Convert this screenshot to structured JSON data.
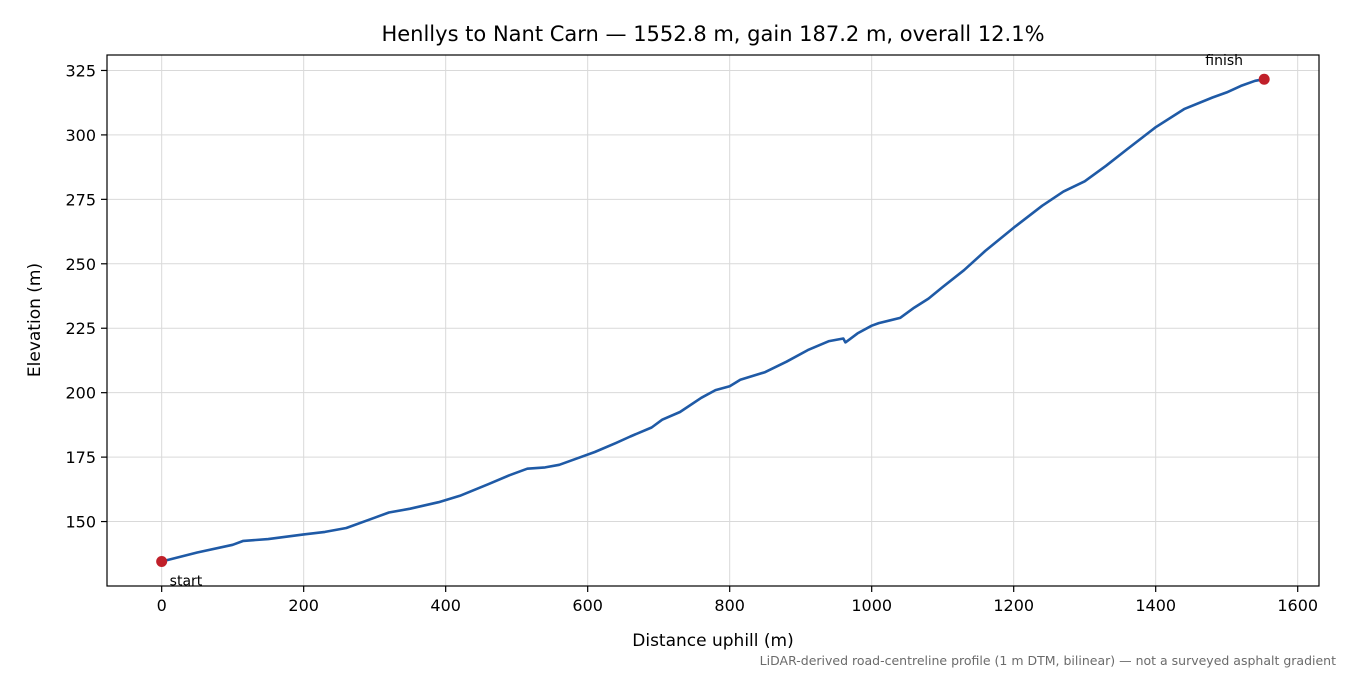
{
  "chart_data": {
    "type": "line",
    "title": "Henllys to Nant Carn — 1552.8 m, gain 187.2 m, overall 12.1%",
    "xlabel": "Distance uphill (m)",
    "ylabel": "Elevation (m)",
    "xlim": [
      -77,
      1630
    ],
    "ylim": [
      125,
      331
    ],
    "xticks": [
      0,
      200,
      400,
      600,
      800,
      1000,
      1200,
      1400,
      1600
    ],
    "yticks": [
      150,
      175,
      200,
      225,
      250,
      275,
      300,
      325
    ],
    "grid": true,
    "line_color": "#1f5aa6",
    "marker_color": "#c0202a",
    "series": [
      {
        "x": [
          0,
          50,
          100,
          115,
          150,
          200,
          230,
          260,
          300,
          320,
          350,
          390,
          420,
          460,
          490,
          515,
          540,
          560,
          580,
          610,
          640,
          660,
          690,
          705,
          730,
          760,
          780,
          800,
          815,
          850,
          880,
          910,
          940,
          960,
          963,
          968,
          980,
          1000,
          1010,
          1040,
          1060,
          1080,
          1100,
          1130,
          1160,
          1200,
          1240,
          1270,
          1300,
          1330,
          1360,
          1400,
          1440,
          1480,
          1500,
          1520,
          1540,
          1552.8
        ],
        "y": [
          134.5,
          138,
          141,
          142.5,
          143.2,
          145,
          146,
          147.5,
          151.5,
          153.5,
          155,
          157.5,
          160,
          164.5,
          168,
          170.5,
          171,
          172,
          174,
          177,
          180.5,
          183,
          186.5,
          189.5,
          192.5,
          198,
          201,
          202.5,
          205,
          208,
          212,
          216.5,
          220,
          221,
          219.5,
          220.5,
          223,
          226,
          227,
          229,
          233,
          236.5,
          241,
          247.5,
          255,
          264,
          272.5,
          278,
          282,
          288,
          294.5,
          303,
          310,
          314.5,
          316.5,
          319,
          321,
          321.6
        ]
      }
    ],
    "markers": [
      {
        "x": 0,
        "y": 134.5,
        "label": "start"
      },
      {
        "x": 1552.8,
        "y": 321.6,
        "label": "finish"
      }
    ],
    "footnote": "LiDAR-derived road-centreline profile (1 m DTM, bilinear) — not a surveyed asphalt gradient"
  }
}
